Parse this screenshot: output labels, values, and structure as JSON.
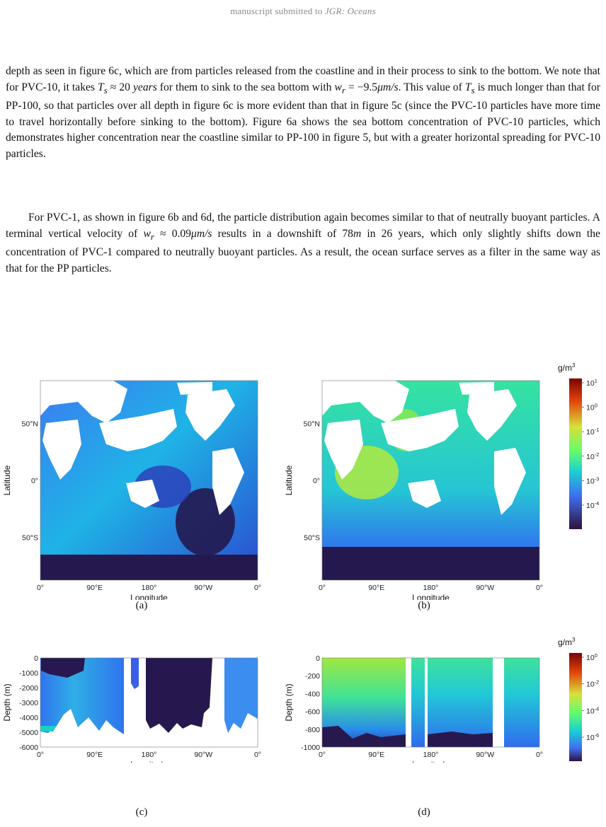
{
  "header": {
    "prefix": "manuscript submitted to ",
    "journal": "JGR: Oceans"
  },
  "body": {
    "p1_a": "depth as seen in figure 6c, which are from particles released from the coastline and in their process to sink to the bottom. We note that for PVC-10, it takes ",
    "p1_Ts": "T",
    "p1_Ts_sub": "s",
    "p1_b": " ≈ 20 ",
    "p1_years": "years",
    "p1_c": " for them to sink to the sea bottom with ",
    "p1_wr": "w",
    "p1_wr_sub": "r",
    "p1_d": " = −9.5",
    "p1_unit": "μm/s",
    "p1_e": ". This value of ",
    "p1_f": " is much longer than that for PP-100, so that particles over all depth in figure 6c is more evident than that in figure 5c (since the PVC-10 particles have more time to travel horizontally before sinking to the bottom). Figure 6a shows the sea bottom concentration of PVC-10 particles, which demonstrates higher concentration near the coastline similar to PP-100 in figure 5, but with a greater horizontal spreading for PVC-10 particles.",
    "p2_a": "For PVC-1, as shown in figure 6b and 6d, the particle distribution again becomes similar to that of neutrally buoyant particles. A terminal vertical velocity of ",
    "p2_b": " ≈ 0.09",
    "p2_c": " results in a downshift of 78",
    "p2_m": "m",
    "p2_d": " in 26 years, which only slightly shifts down the concentration of PVC-1 compared to neutrally buoyant particles. As a result, the ocean surface serves as a filter in the same way as that for the PP particles."
  },
  "figures": {
    "map_xticks": [
      "0°",
      "90°E",
      "180°",
      "90°W",
      "0°"
    ],
    "map_yticks": [
      "50°N",
      "0°",
      "50°S"
    ],
    "xlabel": "Longitude",
    "ylabel_map": "Latitude",
    "ylabel_depth": "Depth (m)",
    "depth_c_ticks": [
      "0",
      "-1000",
      "-2000",
      "-3000",
      "-4000",
      "-5000",
      "-6000"
    ],
    "depth_d_ticks": [
      "0",
      "-200",
      "-400",
      "-600",
      "-800",
      "-1000"
    ],
    "captions": [
      "(a)",
      "(b)",
      "(c)",
      "(d)"
    ],
    "colorbar_top": {
      "unit": "g/m",
      "unit_sup": "3",
      "labels": [
        "10",
        "10",
        "10",
        "10",
        "10",
        "10"
      ],
      "exps": [
        "1",
        "0",
        "-1",
        "-2",
        "-3",
        "-4"
      ]
    },
    "colorbar_bottom": {
      "unit": "g/m",
      "unit_sup": "3",
      "labels": [
        "10",
        "10",
        "10",
        "10"
      ],
      "exps": [
        "0",
        "-2",
        "-4",
        "-6"
      ]
    },
    "colors": {
      "dark": "#2b1a55",
      "blue": "#2f62f0",
      "cyan": "#16c2d8",
      "green": "#43e38a",
      "yellowgreen": "#b4ec3a",
      "orange": "#f08a28",
      "red": "#9a1a0a"
    }
  }
}
